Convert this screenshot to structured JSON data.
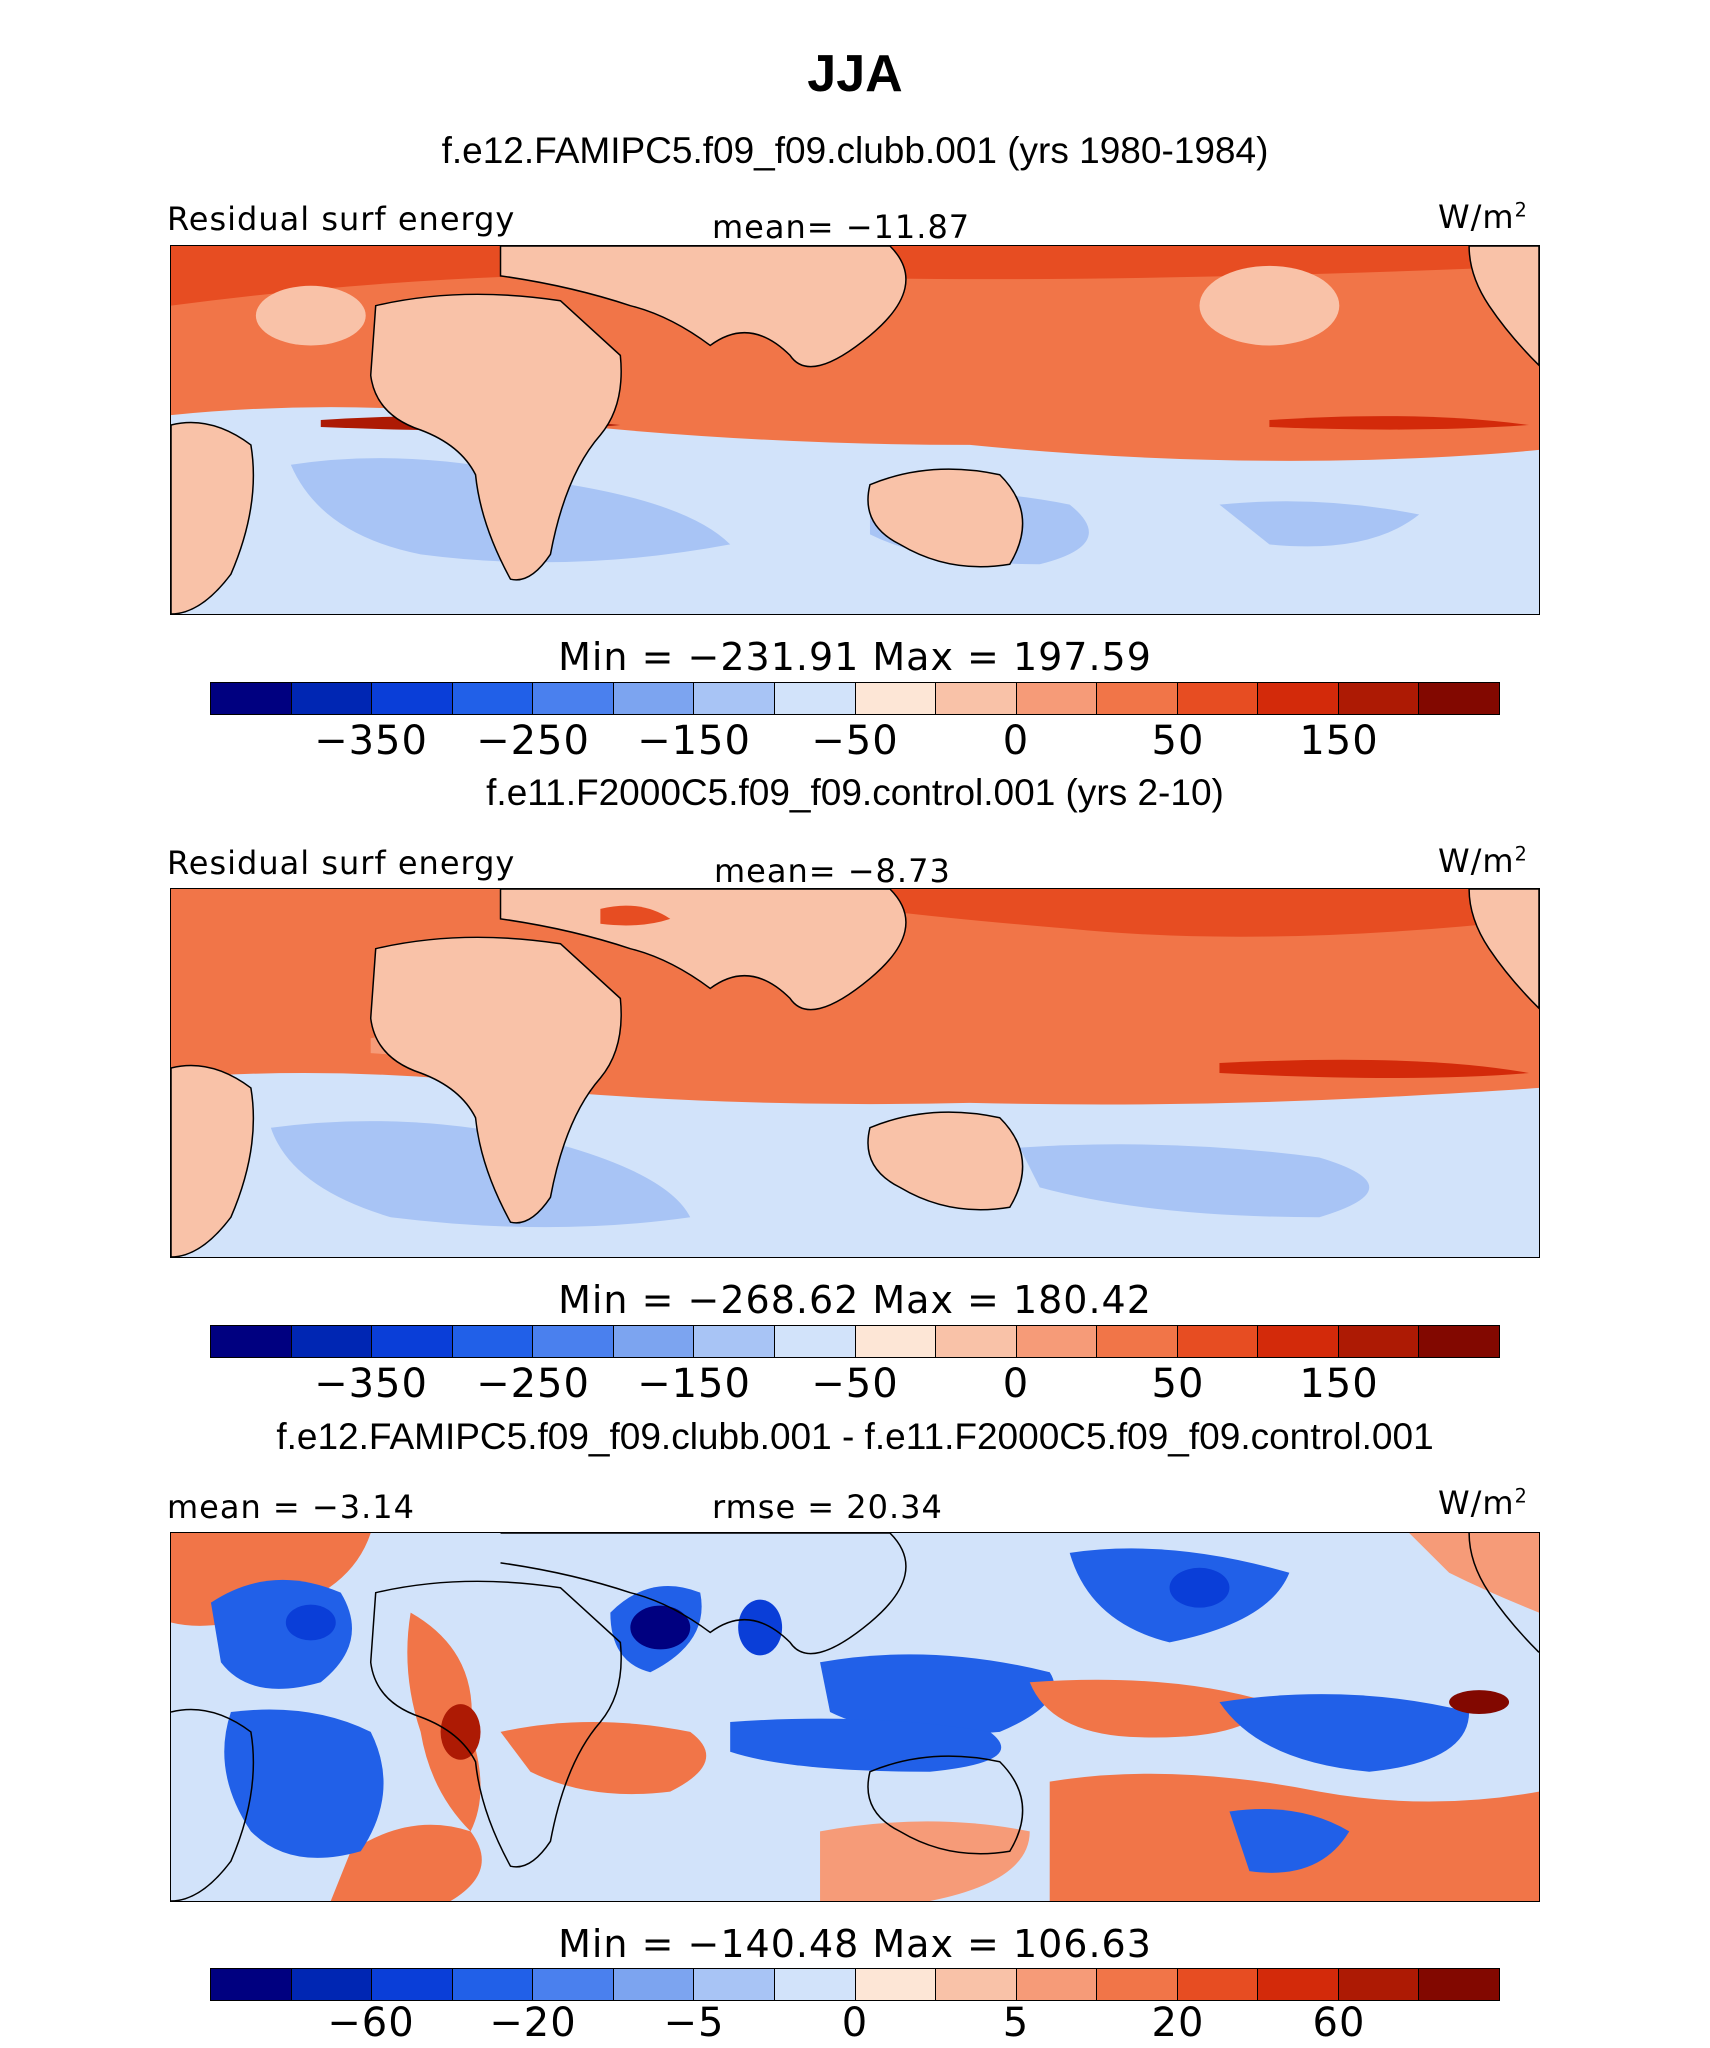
{
  "title": "JJA",
  "colors": [
    "#000080",
    "#0026b3",
    "#0a3ed8",
    "#2160e8",
    "#4a80ee",
    "#7ca4f0",
    "#a8c4f5",
    "#d2e3fa",
    "#fde6d6",
    "#f9c2a8",
    "#f69b78",
    "#f17548",
    "#e74d22",
    "#d32a0a",
    "#ad1a04",
    "#820800"
  ],
  "panels": [
    {
      "case_label": "f.e12.FAMIPC5.f09_f09.clubb.001 (yrs 1980-1984)",
      "left_label": "Residual surf energy",
      "center_label": "mean= −11.87",
      "units": "W/m",
      "units_sup": "2",
      "minmax": "Min = −231.91 Max = 197.59",
      "ticks": [
        "−350",
        "−250",
        "−150",
        "−50",
        "0",
        "50",
        "150"
      ]
    },
    {
      "case_label": "f.e11.F2000C5.f09_f09.control.001 (yrs 2-10)",
      "left_label": "Residual surf energy",
      "center_label": "mean=  −8.73",
      "units": "W/m",
      "units_sup": "2",
      "minmax": "Min = −268.62 Max = 180.42",
      "ticks": [
        "−350",
        "−250",
        "−150",
        "−50",
        "0",
        "50",
        "150"
      ]
    },
    {
      "case_label": "f.e12.FAMIPC5.f09_f09.clubb.001 - f.e11.F2000C5.f09_f09.control.001",
      "left_label": "mean =  −3.14",
      "center_label": "rmse =  20.34",
      "units": "W/m",
      "units_sup": "2",
      "minmax": "Min = −140.48 Max = 106.63",
      "ticks": [
        "−60",
        "−20",
        "−5",
        "0",
        "5",
        "20",
        "60"
      ]
    }
  ]
}
